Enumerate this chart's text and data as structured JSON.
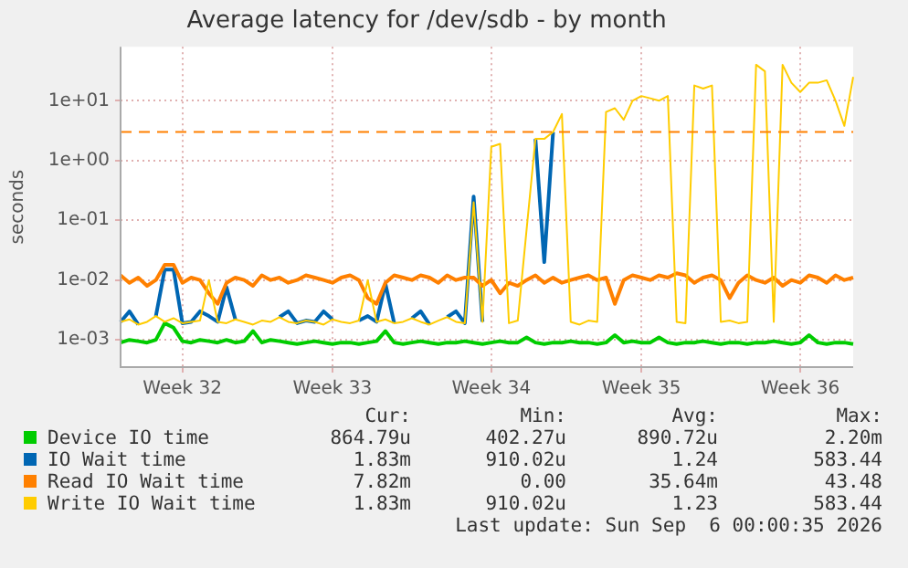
{
  "chart_data": {
    "type": "line",
    "title": "Average latency for /dev/sdb - by month",
    "ylabel": "seconds",
    "log": "y",
    "grid": true,
    "legend": "bottom",
    "marker": "none",
    "line_style": "solid",
    "categories": [
      null,
      null,
      null,
      null,
      null,
      null,
      null,
      "Week 32",
      null,
      null,
      null,
      null,
      null,
      null,
      null,
      null,
      null,
      null,
      null,
      null,
      null,
      null,
      null,
      null,
      "Week 33",
      null,
      null,
      null,
      null,
      null,
      null,
      null,
      null,
      null,
      null,
      null,
      null,
      null,
      null,
      null,
      null,
      null,
      "Week 34",
      null,
      null,
      null,
      null,
      null,
      null,
      null,
      null,
      null,
      null,
      null,
      null,
      null,
      null,
      null,
      null,
      "Week 35",
      null,
      null,
      null,
      null,
      null,
      null,
      null,
      null,
      null,
      null,
      null,
      null,
      null,
      null,
      null,
      null,
      null,
      "Week 36",
      null,
      null,
      null,
      null,
      null,
      null
    ],
    "ylim": [
      0.00035,
      80
    ],
    "yticks": [
      {
        "value": 0.001,
        "label": "1e-03"
      },
      {
        "value": 0.01,
        "label": "1e-02"
      },
      {
        "value": 0.1,
        "label": "1e-01"
      },
      {
        "value": 1,
        "label": "1e+00"
      },
      {
        "value": 10,
        "label": "1e+01"
      }
    ],
    "ref_lines": [
      {
        "axis": "y",
        "value": 3,
        "label": null,
        "color": "#ff8000",
        "line_style": "dashed"
      }
    ],
    "series": [
      {
        "name": "Device IO time",
        "color": "#00cc00",
        "values": [
          0.0009,
          0.001,
          0.00095,
          0.0009,
          0.001,
          0.0019,
          0.0016,
          0.00095,
          0.0009,
          0.001,
          0.00095,
          0.0009,
          0.001,
          0.0009,
          0.00095,
          0.0014,
          0.0009,
          0.001,
          0.00095,
          0.0009,
          0.00085,
          0.0009,
          0.00095,
          0.0009,
          0.00085,
          0.0009,
          0.0009,
          0.00085,
          0.0009,
          0.00095,
          0.0014,
          0.0009,
          0.00085,
          0.0009,
          0.00095,
          0.0009,
          0.00085,
          0.0009,
          0.0009,
          0.00095,
          0.0009,
          0.00085,
          0.0009,
          0.00095,
          0.0009,
          0.0009,
          0.0011,
          0.0009,
          0.00085,
          0.0009,
          0.0009,
          0.00095,
          0.0009,
          0.0009,
          0.00085,
          0.0009,
          0.0012,
          0.0009,
          0.00095,
          0.0009,
          0.0009,
          0.0011,
          0.0009,
          0.00085,
          0.0009,
          0.0009,
          0.00095,
          0.0009,
          0.00085,
          0.0009,
          0.0009,
          0.00085,
          0.0009,
          0.0009,
          0.00095,
          0.0009,
          0.00085,
          0.0009,
          0.0012,
          0.0009,
          0.00085,
          0.0009,
          0.0009,
          0.00085
        ]
      },
      {
        "name": "IO Wait time",
        "color": "#0066b3",
        "values": [
          0.002,
          0.003,
          0.0018,
          null,
          0.0025,
          0.015,
          0.015,
          0.0019,
          0.002,
          0.003,
          0.0025,
          0.002,
          0.0076,
          0.0022,
          null,
          null,
          null,
          null,
          0.0024,
          0.003,
          0.0019,
          0.0021,
          0.002,
          0.003,
          0.0022,
          null,
          null,
          0.0021,
          0.0025,
          0.002,
          0.0087,
          0.0019,
          null,
          0.0023,
          0.003,
          0.0018,
          null,
          0.0024,
          0.003,
          0.0019,
          0.25,
          0.002,
          null,
          null,
          null,
          null,
          null,
          2.3,
          0.02,
          3,
          null,
          null,
          null,
          null,
          null,
          null,
          null,
          null,
          null,
          null,
          null,
          null,
          null,
          null,
          null,
          null,
          null,
          null,
          null,
          null,
          null,
          null,
          null,
          null,
          null,
          null,
          null,
          null,
          null,
          null,
          null,
          null,
          null,
          null
        ]
      },
      {
        "name": "Read IO Wait time",
        "color": "#ff8000",
        "values": [
          0.012,
          0.009,
          0.011,
          0.008,
          0.01,
          0.018,
          0.018,
          0.009,
          0.011,
          0.01,
          0.006,
          0.004,
          0.009,
          0.011,
          0.01,
          0.008,
          0.012,
          0.01,
          0.011,
          0.009,
          0.01,
          0.012,
          0.011,
          0.01,
          0.009,
          0.011,
          0.012,
          0.01,
          0.005,
          0.004,
          0.009,
          0.012,
          0.011,
          0.01,
          0.012,
          0.011,
          0.009,
          0.012,
          0.01,
          0.011,
          0.011,
          0.008,
          0.01,
          0.006,
          0.009,
          0.008,
          0.01,
          0.012,
          0.009,
          0.011,
          0.009,
          0.01,
          0.011,
          0.012,
          0.01,
          0.011,
          0.004,
          0.01,
          0.012,
          0.011,
          0.01,
          0.012,
          0.011,
          0.013,
          0.012,
          0.009,
          0.011,
          0.012,
          0.01,
          0.005,
          0.009,
          0.012,
          0.01,
          0.009,
          0.011,
          0.008,
          0.01,
          0.009,
          0.012,
          0.011,
          0.009,
          0.012,
          0.01,
          0.011
        ]
      },
      {
        "name": "Write IO Wait time",
        "color": "#ffcc00",
        "values": [
          0.002,
          0.0022,
          0.0018,
          0.002,
          0.0025,
          0.002,
          0.0023,
          0.0019,
          0.002,
          0.0021,
          0.01,
          0.002,
          0.0019,
          0.0022,
          0.002,
          0.0018,
          0.0021,
          0.002,
          0.0024,
          0.002,
          0.0019,
          0.0021,
          0.002,
          0.0018,
          0.0022,
          0.002,
          0.0019,
          0.0021,
          0.01,
          0.002,
          0.0022,
          0.0019,
          0.002,
          0.0023,
          0.002,
          0.0018,
          0.0021,
          0.0024,
          0.002,
          0.0019,
          0.2,
          0.002,
          1.7,
          1.9,
          0.0019,
          0.0021,
          0.07,
          2.3,
          2.3,
          3,
          6,
          0.002,
          0.0018,
          0.0021,
          0.002,
          6.5,
          7.5,
          4.8,
          10,
          12,
          11,
          10,
          12,
          0.002,
          0.0019,
          18,
          16,
          18,
          0.002,
          0.0021,
          0.0019,
          0.002,
          40,
          31,
          0.002,
          40,
          20,
          14,
          20,
          20,
          22,
          10,
          3.8,
          25
        ]
      }
    ],
    "annotations": [
      "Cur:",
      "Min:",
      "Avg:",
      "Max:",
      "864.79u",
      "402.27u",
      "890.72u",
      "2.20m",
      "1.83m",
      "910.02u",
      "1.24",
      "583.44",
      "7.82m",
      "0.00",
      "35.64m",
      "43.48",
      "1.83m",
      "910.02u",
      "1.23",
      "583.44",
      "Last update: Sun Sep  6 00:00:35 2026"
    ]
  }
}
